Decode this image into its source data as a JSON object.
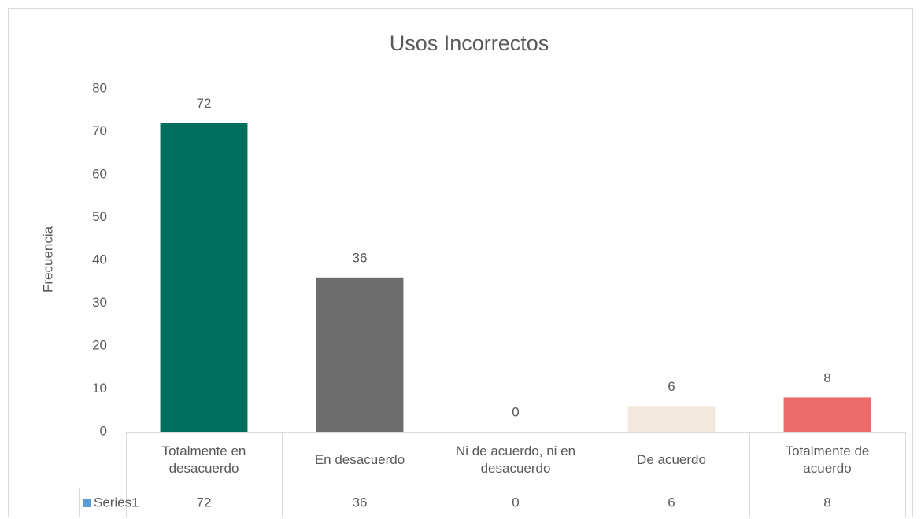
{
  "chart_data": {
    "type": "bar",
    "title": "Usos Incorrectos",
    "y_label": "Frecuencia",
    "categories": [
      "Totalmente en desacuerdo",
      "En desacuerdo",
      "Ni de acuerdo, ni en desacuerdo",
      "De acuerdo",
      "Totalmente de acuerdo"
    ],
    "series": [
      {
        "name": "Series1",
        "color": "#5b9bd5",
        "point_colors": [
          "#006e5f",
          "#6d6d6d",
          "#a5a5a5",
          "#f2e8dc",
          "#ec6b6b"
        ],
        "values": [
          72,
          36,
          0,
          6,
          8
        ]
      }
    ],
    "ylim": [
      0,
      80
    ],
    "yticks": [
      0,
      10,
      20,
      30,
      40,
      50,
      60,
      70,
      80
    ],
    "grid": false,
    "data_table": true
  }
}
